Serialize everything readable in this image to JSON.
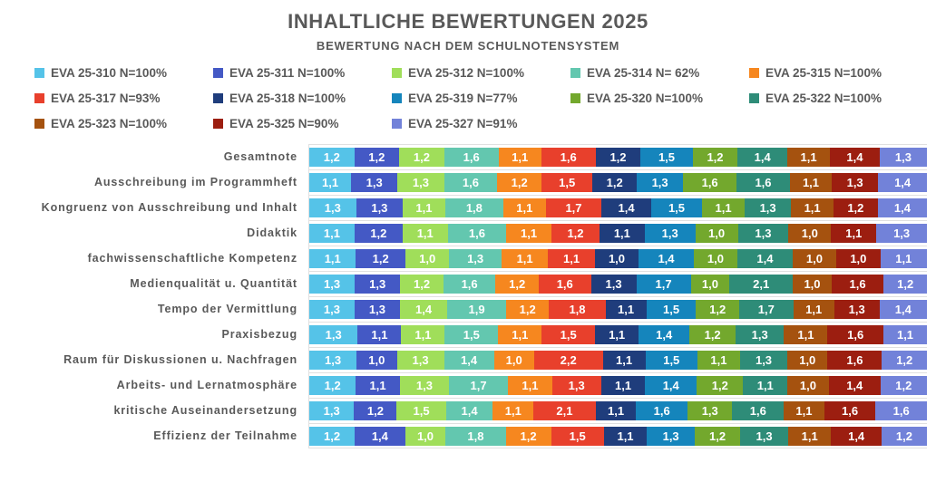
{
  "title": "INHALTLICHE BEWERTUNGEN 2025",
  "subtitle": "BEWERTUNG NACH DEM SCHULNOTENSYSTEM",
  "style": {
    "text_color": "#595959",
    "gridline_color": "#e0e0e0",
    "value_label_color": "#ffffff"
  },
  "chart_data": {
    "type": "bar",
    "variant": "horizontal-stacked-normalized",
    "legend_position": "top",
    "grid": "category-separator-lines",
    "value_format": "german-decimal-comma",
    "categories": [
      "Gesamtnote",
      "Ausschreibung im Programmheft",
      "Kongruenz von Ausschreibung und Inhalt",
      "Didaktik",
      "fachwissenschaftliche Kompetenz",
      "Medienqualität u. Quantität",
      "Tempo der Vermittlung",
      "Praxisbezug",
      "Raum für Diskussionen u. Nachfragen",
      "Arbeits- und Lernatmosphäre",
      "kritische Auseinandersetzung",
      "Effizienz der Teilnahme"
    ],
    "series": [
      {
        "label": "EVA 25-310 N=100%",
        "color": "#55c3e8",
        "values": [
          1.2,
          1.1,
          1.3,
          1.1,
          1.1,
          1.3,
          1.3,
          1.3,
          1.3,
          1.2,
          1.3,
          1.2
        ]
      },
      {
        "label": "EVA 25-311 N=100%",
        "color": "#4459c5",
        "values": [
          1.2,
          1.3,
          1.3,
          1.2,
          1.2,
          1.3,
          1.3,
          1.1,
          1.0,
          1.1,
          1.2,
          1.4
        ]
      },
      {
        "label": "EVA 25-312 N=100%",
        "color": "#a0de5a",
        "values": [
          1.2,
          1.3,
          1.1,
          1.1,
          1.0,
          1.2,
          1.4,
          1.1,
          1.3,
          1.3,
          1.5,
          1.0
        ]
      },
      {
        "label": "EVA 25-314 N= 62%",
        "color": "#63c7af",
        "values": [
          1.6,
          1.6,
          1.8,
          1.6,
          1.3,
          1.6,
          1.9,
          1.5,
          1.4,
          1.7,
          1.4,
          1.8
        ]
      },
      {
        "label": "EVA 25-315 N=100%",
        "color": "#f6871f",
        "values": [
          1.1,
          1.2,
          1.1,
          1.1,
          1.1,
          1.2,
          1.2,
          1.1,
          1.0,
          1.1,
          1.1,
          1.2
        ]
      },
      {
        "label": "EVA 25-317 N=93%",
        "color": "#e8402c",
        "values": [
          1.6,
          1.5,
          1.7,
          1.2,
          1.1,
          1.6,
          1.8,
          1.5,
          2.2,
          1.3,
          2.1,
          1.5
        ]
      },
      {
        "label": "EVA 25-318 N=100%",
        "color": "#1f3d7c",
        "values": [
          1.2,
          1.2,
          1.4,
          1.1,
          1.0,
          1.3,
          1.1,
          1.1,
          1.1,
          1.1,
          1.1,
          1.1
        ]
      },
      {
        "label": "EVA 25-319 N=77%",
        "color": "#1585bc",
        "values": [
          1.5,
          1.3,
          1.5,
          1.3,
          1.4,
          1.7,
          1.5,
          1.4,
          1.5,
          1.4,
          1.6,
          1.3
        ]
      },
      {
        "label": "EVA 25-320 N=100%",
        "color": "#73a82d",
        "values": [
          1.2,
          1.6,
          1.1,
          1.0,
          1.0,
          1.0,
          1.2,
          1.2,
          1.1,
          1.2,
          1.3,
          1.2
        ]
      },
      {
        "label": "EVA 25-322 N=100%",
        "color": "#2e8c78",
        "values": [
          1.4,
          1.6,
          1.3,
          1.3,
          1.4,
          2.1,
          1.7,
          1.3,
          1.3,
          1.1,
          1.6,
          1.3
        ]
      },
      {
        "label": "EVA 25-323 N=100%",
        "color": "#a5520f",
        "values": [
          1.1,
          1.1,
          1.1,
          1.0,
          1.0,
          1.0,
          1.1,
          1.1,
          1.0,
          1.0,
          1.1,
          1.1
        ]
      },
      {
        "label": "EVA 25-325 N=90%",
        "color": "#9c1e10",
        "values": [
          1.4,
          1.3,
          1.2,
          1.1,
          1.0,
          1.6,
          1.3,
          1.6,
          1.6,
          1.4,
          1.6,
          1.4
        ]
      },
      {
        "label": "EVA 25-327 N=91%",
        "color": "#7282d9",
        "values": [
          1.3,
          1.4,
          1.4,
          1.3,
          1.1,
          1.2,
          1.4,
          1.1,
          1.2,
          1.2,
          1.6,
          1.2
        ]
      }
    ]
  }
}
